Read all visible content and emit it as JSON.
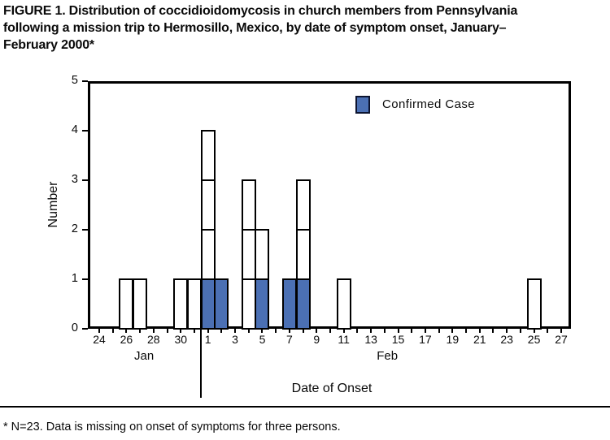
{
  "figure": {
    "title_lines": [
      "FIGURE 1. Distribution of coccidioidomycosis in church members from Pennsylvania",
      "following a mission trip to Hermosillo, Mexico, by date of symptom onset, January–",
      "February 2000*"
    ],
    "footnote": "* N=23. Data is missing on onset of symptoms for three persons."
  },
  "legend": {
    "confirmed_label": "Confirmed Case"
  },
  "chart_data": {
    "type": "bar",
    "subtype": "stacked-epi-curve-one-box-per-case",
    "title": "",
    "xlabel": "Date of Onset",
    "ylabel": "Number",
    "ylim": [
      0,
      5
    ],
    "y_ticks": [
      0,
      1,
      2,
      3,
      4,
      5
    ],
    "grid": false,
    "legend_position": "top-right-inside",
    "x_axis": {
      "start_date": "Jan 24",
      "end_date": "Feb 27",
      "n_days": 35,
      "tick_labels": [
        "24",
        "26",
        "28",
        "30",
        "1",
        "3",
        "5",
        "7",
        "9",
        "11",
        "13",
        "15",
        "17",
        "19",
        "21",
        "23",
        "25",
        "27"
      ],
      "month_labels": [
        {
          "label": "Jan",
          "day_index": 3.3
        },
        {
          "label": "Feb",
          "day_index": 21.2
        }
      ],
      "month_divider_day_index": 7.5
    },
    "bars": [
      {
        "date": "Jan 26",
        "day_index": 2,
        "confirmed": 0,
        "unconfirmed": 1
      },
      {
        "date": "Jan 27",
        "day_index": 3,
        "confirmed": 0,
        "unconfirmed": 1
      },
      {
        "date": "Jan 30",
        "day_index": 6,
        "confirmed": 0,
        "unconfirmed": 1
      },
      {
        "date": "Jan 31",
        "day_index": 7,
        "confirmed": 0,
        "unconfirmed": 1
      },
      {
        "date": "Feb 1",
        "day_index": 8,
        "confirmed": 1,
        "unconfirmed": 3
      },
      {
        "date": "Feb 2",
        "day_index": 9,
        "confirmed": 1,
        "unconfirmed": 0
      },
      {
        "date": "Feb 4",
        "day_index": 11,
        "confirmed": 0,
        "unconfirmed": 3
      },
      {
        "date": "Feb 5",
        "day_index": 12,
        "confirmed": 1,
        "unconfirmed": 1
      },
      {
        "date": "Feb 7",
        "day_index": 14,
        "confirmed": 1,
        "unconfirmed": 0
      },
      {
        "date": "Feb 8",
        "day_index": 15,
        "confirmed": 1,
        "unconfirmed": 2
      },
      {
        "date": "Feb 11",
        "day_index": 18,
        "confirmed": 0,
        "unconfirmed": 1
      },
      {
        "date": "Feb 25",
        "day_index": 32,
        "confirmed": 0,
        "unconfirmed": 1
      }
    ],
    "totals": {
      "cases_plotted": 20,
      "confirmed_plotted": 5
    },
    "colors": {
      "confirmed_fill": "#4b70b4",
      "case_fill": "#ffffff",
      "outline": "#000000",
      "text": "#0a0a0a"
    }
  }
}
